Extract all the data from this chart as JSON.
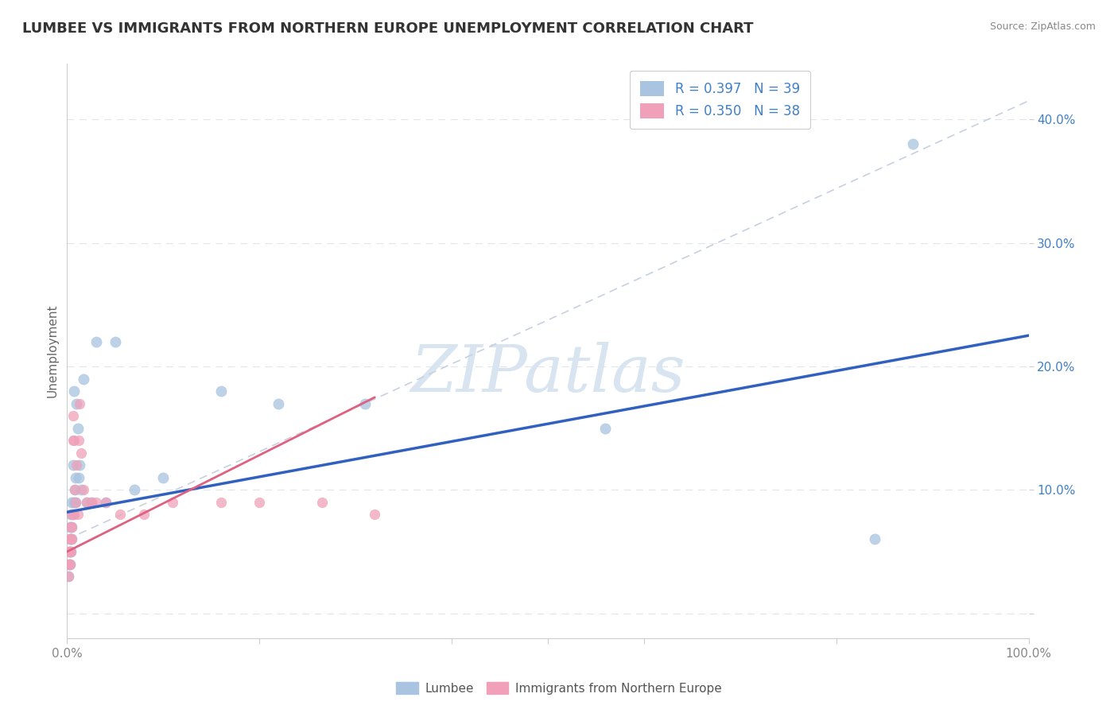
{
  "title": "LUMBEE VS IMMIGRANTS FROM NORTHERN EUROPE UNEMPLOYMENT CORRELATION CHART",
  "source": "Source: ZipAtlas.com",
  "ylabel": "Unemployment",
  "y_ticks": [
    0.0,
    0.1,
    0.2,
    0.3,
    0.4
  ],
  "y_tick_labels": [
    "",
    "10.0%",
    "20.0%",
    "30.0%",
    "40.0%"
  ],
  "xlim": [
    0,
    1.0
  ],
  "ylim": [
    -0.02,
    0.445
  ],
  "legend1_label": "R = 0.397   N = 39",
  "legend2_label": "R = 0.350   N = 38",
  "legend_bottom_label1": "Lumbee",
  "legend_bottom_label2": "Immigrants from Northern Europe",
  "lumbee_color": "#a8c4e0",
  "immigrant_color": "#f0a0b8",
  "lumbee_line_color": "#3060c0",
  "immigrant_line_color": "#e06080",
  "ref_line_color": "#c8d0e0",
  "watermark_color": "#d8e4f0",
  "background_color": "#ffffff",
  "grid_color": "#e0e4ee",
  "lumbee_x": [
    0.001,
    0.002,
    0.002,
    0.003,
    0.003,
    0.003,
    0.003,
    0.004,
    0.004,
    0.004,
    0.005,
    0.005,
    0.005,
    0.006,
    0.006,
    0.007,
    0.007,
    0.008,
    0.009,
    0.009,
    0.01,
    0.011,
    0.012,
    0.013,
    0.015,
    0.017,
    0.02,
    0.025,
    0.03,
    0.04,
    0.05,
    0.07,
    0.1,
    0.16,
    0.22,
    0.31,
    0.56,
    0.84,
    0.88
  ],
  "lumbee_y": [
    0.03,
    0.04,
    0.05,
    0.04,
    0.05,
    0.06,
    0.07,
    0.05,
    0.06,
    0.08,
    0.06,
    0.07,
    0.09,
    0.08,
    0.12,
    0.09,
    0.18,
    0.1,
    0.09,
    0.11,
    0.17,
    0.15,
    0.11,
    0.12,
    0.1,
    0.19,
    0.09,
    0.09,
    0.22,
    0.09,
    0.22,
    0.1,
    0.11,
    0.18,
    0.17,
    0.17,
    0.15,
    0.06,
    0.38
  ],
  "immigrant_x": [
    0.001,
    0.001,
    0.002,
    0.002,
    0.002,
    0.003,
    0.003,
    0.003,
    0.003,
    0.004,
    0.004,
    0.004,
    0.005,
    0.005,
    0.005,
    0.006,
    0.006,
    0.007,
    0.007,
    0.008,
    0.009,
    0.01,
    0.011,
    0.012,
    0.013,
    0.015,
    0.017,
    0.02,
    0.025,
    0.03,
    0.04,
    0.055,
    0.08,
    0.11,
    0.16,
    0.2,
    0.265,
    0.32
  ],
  "immigrant_y": [
    0.03,
    0.04,
    0.04,
    0.05,
    0.05,
    0.04,
    0.05,
    0.06,
    0.06,
    0.05,
    0.06,
    0.07,
    0.06,
    0.07,
    0.08,
    0.14,
    0.16,
    0.08,
    0.14,
    0.1,
    0.09,
    0.12,
    0.08,
    0.14,
    0.17,
    0.13,
    0.1,
    0.09,
    0.09,
    0.09,
    0.09,
    0.08,
    0.08,
    0.09,
    0.09,
    0.09,
    0.09,
    0.08
  ],
  "lumbee_line_x0": 0.0,
  "lumbee_line_y0": 0.082,
  "lumbee_line_x1": 1.0,
  "lumbee_line_y1": 0.225,
  "imm_line_x0": 0.0,
  "imm_line_y0": 0.05,
  "imm_line_x1": 0.32,
  "imm_line_y1": 0.175,
  "ref_line_x0": 0.0,
  "ref_line_y0": 0.06,
  "ref_line_x1": 1.0,
  "ref_line_y1": 0.415
}
